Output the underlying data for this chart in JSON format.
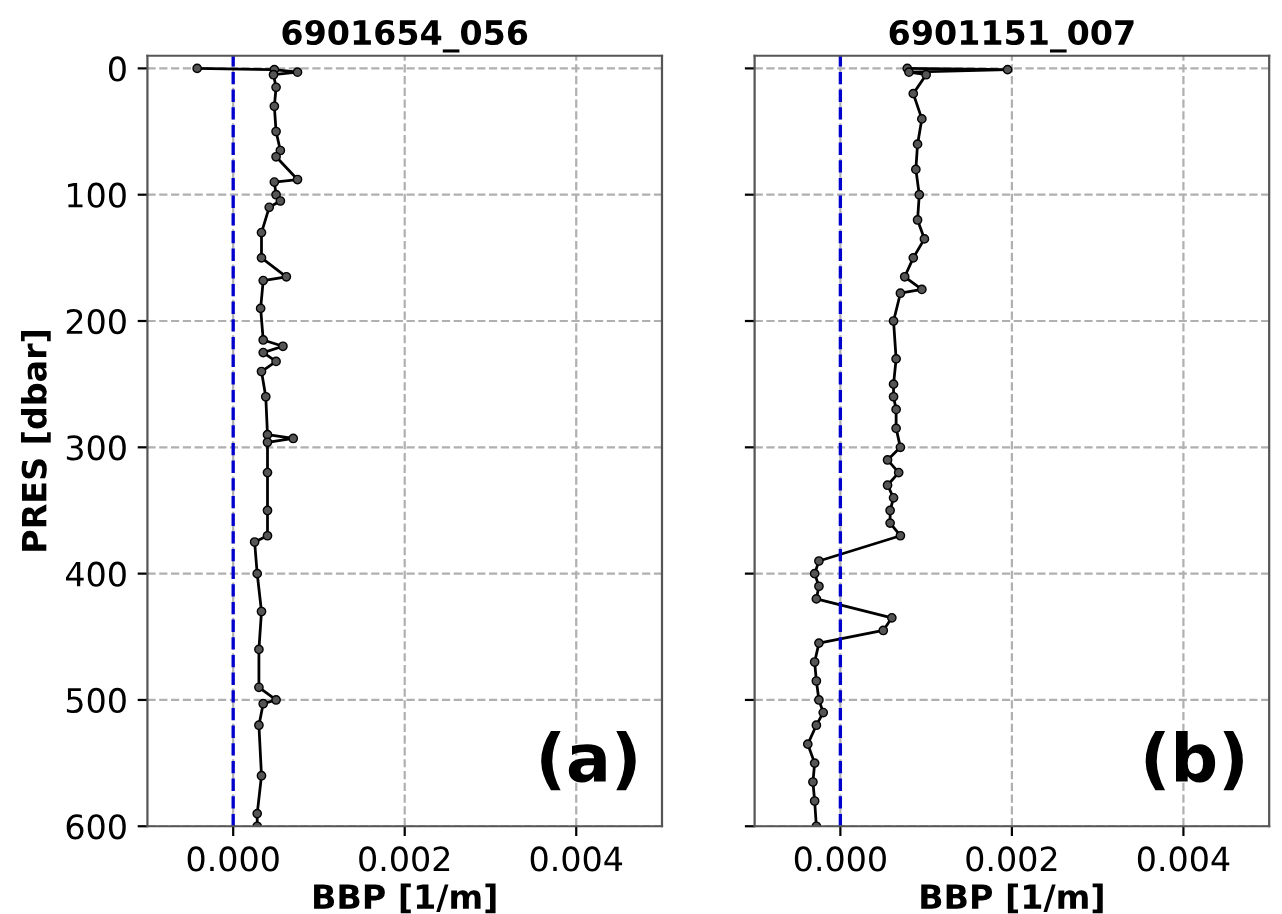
{
  "chart_data": [
    {
      "type": "line",
      "title": "6901654_056",
      "xlabel": "BBP [1/m]",
      "ylabel": "PRES [dbar]",
      "marker": "circle",
      "line_style": "solid",
      "grid": true,
      "xlim": [
        -0.001,
        0.005
      ],
      "xticks": [
        {
          "value": 0,
          "label": "0.000"
        },
        {
          "value": 0.002,
          "label": "0.002"
        },
        {
          "value": 0.004,
          "label": "0.004"
        }
      ],
      "ylim": [
        600,
        -10
      ],
      "yticks": [
        0,
        100,
        200,
        300,
        400,
        500,
        600
      ],
      "ref_lines": [
        {
          "axis": "x",
          "value": 0,
          "color": "#0000cd",
          "line_style": "dashed"
        }
      ],
      "annotations": [
        "(a)"
      ],
      "series": [
        {
          "color": "#000000",
          "x": [
            -0.00042,
            0.00048,
            0.00075,
            0.00047,
            0.0005,
            0.00048,
            0.0005,
            0.00055,
            0.0005,
            0.00075,
            0.00048,
            0.0005,
            0.00055,
            0.00042,
            0.00033,
            0.00033,
            0.00062,
            0.00035,
            0.00032,
            0.00035,
            0.00058,
            0.00035,
            0.0005,
            0.00033,
            0.00038,
            0.0004,
            0.0007,
            0.0004,
            0.0004,
            0.0004,
            0.0004,
            0.00025,
            0.00028,
            0.00033,
            0.0003,
            0.0003,
            0.0005,
            0.00035,
            0.0003,
            0.00033,
            0.00028,
            0.00028
          ],
          "values": [
            0,
            1,
            3,
            5,
            15,
            30,
            50,
            65,
            70,
            88,
            90,
            100,
            105,
            110,
            130,
            150,
            165,
            168,
            190,
            215,
            220,
            225,
            232,
            240,
            260,
            290,
            293,
            296,
            320,
            350,
            370,
            375,
            400,
            430,
            460,
            490,
            500,
            503,
            520,
            560,
            590,
            600
          ]
        }
      ]
    },
    {
      "type": "line",
      "title": "6901151_007",
      "xlabel": "BBP [1/m]",
      "marker": "circle",
      "line_style": "solid",
      "grid": true,
      "tick_labels": "x",
      "xlim": [
        -0.001,
        0.005
      ],
      "xticks": [
        {
          "value": 0,
          "label": "0.000"
        },
        {
          "value": 0.002,
          "label": "0.002"
        },
        {
          "value": 0.004,
          "label": "0.004"
        }
      ],
      "ylim": [
        600,
        -10
      ],
      "yticks": [
        0,
        100,
        200,
        300,
        400,
        500,
        600
      ],
      "ref_lines": [
        {
          "axis": "x",
          "value": 0,
          "color": "#0000cd",
          "line_style": "dashed"
        }
      ],
      "annotations": [
        "(b)"
      ],
      "series": [
        {
          "color": "#000000",
          "x": [
            0.00078,
            0.00195,
            0.0008,
            0.001,
            0.00085,
            0.00095,
            0.0009,
            0.00088,
            0.00092,
            0.0009,
            0.00098,
            0.00085,
            0.00075,
            0.00095,
            0.0007,
            0.00062,
            0.00065,
            0.00062,
            0.00062,
            0.00065,
            0.00065,
            0.0007,
            0.00055,
            0.00068,
            0.00055,
            0.00062,
            0.00058,
            0.00058,
            0.0007,
            -0.00025,
            -0.0003,
            -0.00025,
            -0.00028,
            0.0006,
            0.0005,
            -0.00025,
            -0.0003,
            -0.00028,
            -0.00025,
            -0.0002,
            -0.00028,
            -0.00038,
            -0.0003,
            -0.00032,
            -0.0003,
            -0.00028
          ],
          "values": [
            0,
            1,
            3,
            5,
            20,
            40,
            60,
            80,
            100,
            120,
            135,
            150,
            165,
            175,
            178,
            200,
            230,
            250,
            260,
            270,
            285,
            300,
            310,
            320,
            330,
            340,
            350,
            360,
            370,
            390,
            400,
            410,
            420,
            435,
            445,
            455,
            470,
            485,
            500,
            510,
            520,
            535,
            550,
            565,
            580,
            600
          ]
        }
      ]
    }
  ]
}
